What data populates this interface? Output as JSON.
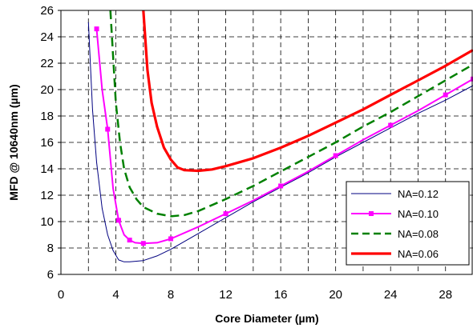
{
  "chart_data": {
    "type": "line",
    "title": "",
    "xlabel": "Core Diameter (µm)",
    "ylabel": "MFD @ 10640nm (µm)",
    "xlim": [
      0,
      30
    ],
    "ylim": [
      6,
      26
    ],
    "x_ticks": [
      0,
      4,
      8,
      12,
      16,
      20,
      24,
      28
    ],
    "y_ticks": [
      6,
      8,
      10,
      12,
      14,
      16,
      18,
      20,
      22,
      24,
      26
    ],
    "grid": "dashed",
    "legend_position": "bottom-right",
    "series": [
      {
        "name": "NA=0.12",
        "color": "#000080",
        "style": "solid-thin",
        "x": [
          2,
          2.3,
          2.6,
          3.0,
          3.4,
          3.8,
          4.2,
          4.6,
          5.0,
          6.0,
          7.0,
          8.0,
          10.0,
          12.0,
          14.0,
          16.0,
          18.0,
          20.0,
          22.0,
          24.0,
          26.0,
          28.0,
          30.0
        ],
        "y": [
          25.1,
          18.5,
          14.5,
          11.0,
          9.0,
          7.8,
          7.1,
          6.95,
          6.95,
          7.05,
          7.4,
          7.9,
          9.1,
          10.3,
          11.5,
          12.6,
          13.7,
          14.9,
          16.0,
          17.1,
          18.2,
          19.2,
          20.3
        ]
      },
      {
        "name": "NA=0.10",
        "color": "#ff00ff",
        "style": "solid-square-markers",
        "x": [
          2.6,
          3.0,
          3.4,
          3.8,
          4.2,
          4.6,
          5.0,
          5.4,
          6.0,
          7.0,
          8.0,
          10.0,
          12.0,
          14.0,
          16.0,
          18.0,
          20.0,
          22.0,
          24.0,
          26.0,
          28.0,
          30.0
        ],
        "y": [
          24.6,
          20.0,
          17.0,
          12.5,
          10.1,
          9.0,
          8.6,
          8.4,
          8.35,
          8.4,
          8.7,
          9.6,
          10.6,
          11.6,
          12.7,
          13.8,
          15.0,
          16.2,
          17.3,
          18.4,
          19.6,
          20.8
        ]
      },
      {
        "name": "NA=0.08",
        "color": "#008000",
        "style": "dashed",
        "x": [
          3.6,
          3.8,
          4.0,
          4.3,
          4.6,
          5.0,
          5.5,
          6.0,
          7.0,
          8.0,
          9.0,
          10.0,
          12.0,
          14.0,
          16.0,
          18.0,
          20.0,
          22.0,
          24.0,
          26.0,
          28.0,
          30.0
        ],
        "y": [
          26.0,
          22.5,
          19.0,
          16.0,
          14.0,
          12.6,
          11.7,
          11.1,
          10.6,
          10.4,
          10.5,
          10.8,
          11.7,
          12.7,
          13.8,
          14.9,
          16.0,
          17.2,
          18.3,
          19.5,
          20.7,
          21.9
        ]
      },
      {
        "name": "NA=0.06",
        "color": "#ff0000",
        "style": "solid-thick",
        "x": [
          6.0,
          6.3,
          6.6,
          7.0,
          7.5,
          8.0,
          8.5,
          9.0,
          10.0,
          11.0,
          12.0,
          14.0,
          16.0,
          18.0,
          20.0,
          22.0,
          24.0,
          26.0,
          28.0,
          30.0
        ],
        "y": [
          26.0,
          21.5,
          19.0,
          17.2,
          15.6,
          14.7,
          14.1,
          13.9,
          13.85,
          13.95,
          14.2,
          14.8,
          15.6,
          16.5,
          17.5,
          18.5,
          19.6,
          20.7,
          21.8,
          23.0
        ]
      }
    ]
  }
}
